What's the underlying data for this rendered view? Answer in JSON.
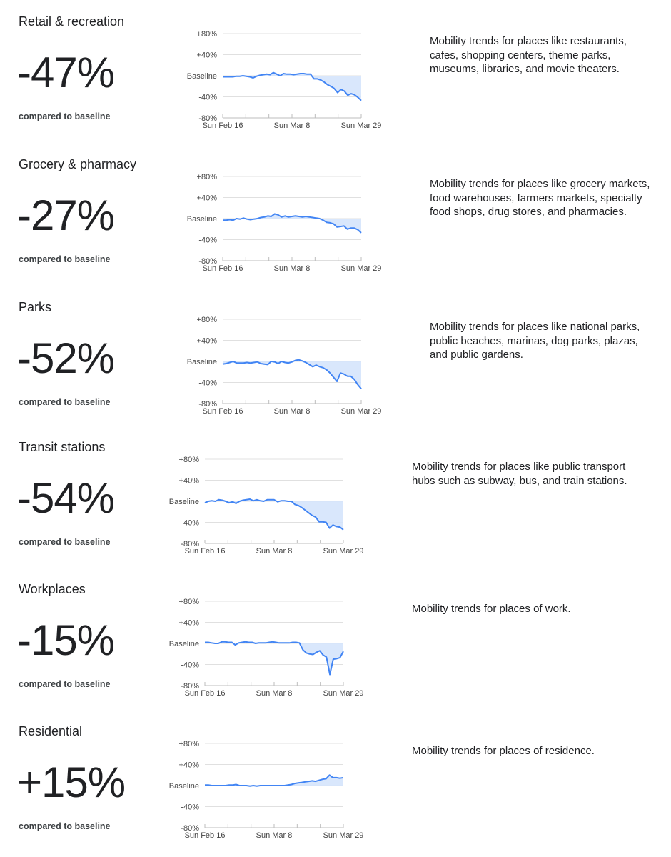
{
  "common": {
    "compared_label": "compared to baseline",
    "y_ticks": [
      "+80%",
      "+40%",
      "Baseline",
      "-40%",
      "-80%"
    ],
    "x_ticks": [
      "Sun Feb 16",
      "Sun Mar 8",
      "Sun Mar 29"
    ],
    "colors": {
      "line": "#4285f4",
      "fill": "#d2e3fc",
      "grid": "#e0e0e0",
      "text": "#202124"
    }
  },
  "categories": [
    {
      "title": "Retail & recreation",
      "value": "-47%",
      "description": "Mobility trends for places like restaurants, cafes, shopping centers, theme parks, museums, libraries, and movie theaters."
    },
    {
      "title": "Grocery & pharmacy",
      "value": "-27%",
      "description": "Mobility trends for places like grocery markets, food warehouses, farmers markets, specialty food shops, drug stores, and pharmacies."
    },
    {
      "title": "Parks",
      "value": "-52%",
      "description": "Mobility trends for places like national parks, public beaches, marinas, dog parks, plazas, and public gardens."
    },
    {
      "title": "Transit stations",
      "value": "-54%",
      "description": "Mobility trends for places like public transport hubs such as subway, bus, and train stations."
    },
    {
      "title": "Workplaces",
      "value": "-15%",
      "description": "Mobility trends for places of work."
    },
    {
      "title": "Residential",
      "value": "+15%",
      "description": "Mobility trends for places of residence."
    }
  ],
  "chart_data": [
    {
      "type": "area",
      "title": "Retail & recreation",
      "ylabel": "",
      "xlabel": "",
      "ylim": [
        -80,
        80
      ],
      "grid": true,
      "x_range": [
        "Sun Feb 16",
        "Sun Mar 29"
      ],
      "x_ticks": [
        "Sun Feb 16",
        "Sun Mar 8",
        "Sun Mar 29"
      ],
      "values": [
        -2,
        -2,
        -2,
        -2,
        -1,
        -1,
        0,
        -1,
        -2,
        -4,
        -1,
        1,
        2,
        3,
        2,
        6,
        3,
        0,
        4,
        3,
        3,
        2,
        3,
        4,
        4,
        3,
        3,
        -6,
        -6,
        -8,
        -12,
        -17,
        -20,
        -24,
        -32,
        -26,
        -29,
        -37,
        -34,
        -36,
        -41,
        -47
      ]
    },
    {
      "type": "area",
      "title": "Grocery & pharmacy",
      "ylabel": "",
      "xlabel": "",
      "ylim": [
        -80,
        80
      ],
      "grid": true,
      "x_range": [
        "Sun Feb 16",
        "Sun Mar 29"
      ],
      "x_ticks": [
        "Sun Feb 16",
        "Sun Mar 8",
        "Sun Mar 29"
      ],
      "values": [
        -3,
        -3,
        -2,
        -3,
        0,
        -1,
        1,
        -1,
        -2,
        -1,
        0,
        2,
        3,
        5,
        4,
        9,
        7,
        3,
        5,
        3,
        4,
        5,
        4,
        3,
        4,
        3,
        2,
        1,
        0,
        -3,
        -7,
        -8,
        -10,
        -16,
        -15,
        -14,
        -20,
        -18,
        -18,
        -21,
        -27
      ]
    },
    {
      "type": "area",
      "title": "Parks",
      "ylabel": "",
      "xlabel": "",
      "ylim": [
        -80,
        80
      ],
      "grid": true,
      "x_range": [
        "Sun Feb 16",
        "Sun Mar 29"
      ],
      "x_ticks": [
        "Sun Feb 16",
        "Sun Mar 8",
        "Sun Mar 29"
      ],
      "values": [
        -5,
        -4,
        -2,
        0,
        -3,
        -3,
        -3,
        -2,
        -3,
        -2,
        -1,
        -4,
        -5,
        -6,
        0,
        -1,
        -4,
        0,
        -2,
        -3,
        -1,
        2,
        3,
        1,
        -2,
        -6,
        -10,
        -7,
        -10,
        -12,
        -16,
        -22,
        -30,
        -38,
        -22,
        -24,
        -28,
        -28,
        -34,
        -44,
        -52
      ]
    },
    {
      "type": "area",
      "title": "Transit stations",
      "ylabel": "",
      "xlabel": "",
      "ylim": [
        -80,
        80
      ],
      "grid": true,
      "x_range": [
        "Sun Feb 16",
        "Sun Mar 29"
      ],
      "x_ticks": [
        "Sun Feb 16",
        "Sun Mar 8",
        "Sun Mar 29"
      ],
      "values": [
        -3,
        0,
        1,
        0,
        3,
        2,
        0,
        -3,
        -1,
        -4,
        0,
        2,
        3,
        4,
        1,
        3,
        1,
        0,
        3,
        3,
        3,
        -1,
        1,
        1,
        0,
        0,
        -6,
        -8,
        -12,
        -17,
        -22,
        -27,
        -30,
        -39,
        -39,
        -40,
        -51,
        -45,
        -48,
        -49,
        -54
      ]
    },
    {
      "type": "area",
      "title": "Workplaces",
      "ylabel": "",
      "xlabel": "",
      "ylim": [
        -80,
        80
      ],
      "grid": true,
      "x_range": [
        "Sun Feb 16",
        "Sun Mar 29"
      ],
      "x_ticks": [
        "Sun Feb 16",
        "Sun Mar 8",
        "Sun Mar 29"
      ],
      "values": [
        2,
        2,
        1,
        0,
        0,
        3,
        3,
        2,
        2,
        -3,
        1,
        2,
        3,
        2,
        2,
        0,
        1,
        1,
        1,
        2,
        3,
        2,
        1,
        1,
        1,
        1,
        2,
        2,
        1,
        -12,
        -18,
        -20,
        -21,
        -17,
        -14,
        -22,
        -26,
        -59,
        -30,
        -29,
        -27,
        -15
      ]
    },
    {
      "type": "area",
      "title": "Residential",
      "ylabel": "",
      "xlabel": "",
      "ylim": [
        -80,
        80
      ],
      "grid": true,
      "x_range": [
        "Sun Feb 16",
        "Sun Mar 29"
      ],
      "x_ticks": [
        "Sun Feb 16",
        "Sun Mar 8",
        "Sun Mar 29"
      ],
      "values": [
        1,
        1,
        0,
        0,
        0,
        0,
        0,
        1,
        1,
        2,
        0,
        0,
        0,
        -1,
        0,
        -1,
        0,
        0,
        0,
        0,
        0,
        0,
        0,
        0,
        1,
        2,
        4,
        5,
        6,
        7,
        8,
        9,
        8,
        10,
        12,
        13,
        20,
        15,
        15,
        14,
        15
      ]
    }
  ]
}
